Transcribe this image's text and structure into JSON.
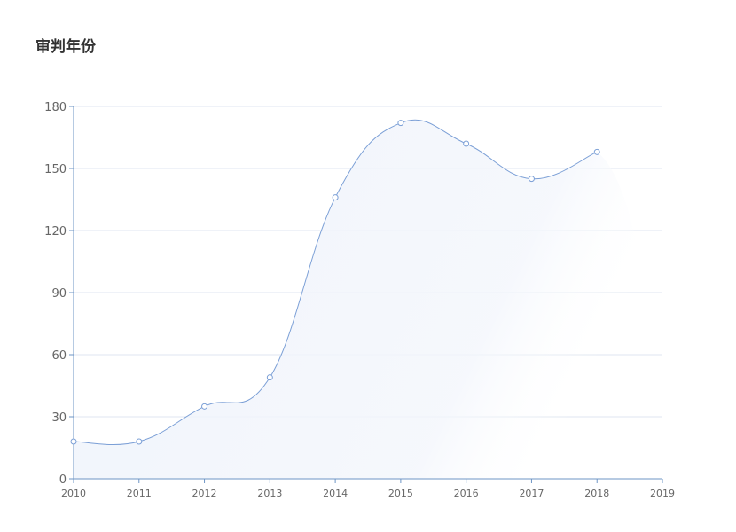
{
  "chart_data": {
    "type": "line",
    "title": "审判年份",
    "x": [
      2010,
      2011,
      2012,
      2013,
      2014,
      2015,
      2016,
      2017,
      2018
    ],
    "values": [
      18,
      18,
      35,
      49,
      136,
      172,
      162,
      145,
      158
    ],
    "xticks": [
      "2010",
      "2011",
      "2012",
      "2013",
      "2014",
      "2015",
      "2016",
      "2017",
      "2018",
      "2019"
    ],
    "yticks": [
      "0",
      "30",
      "60",
      "90",
      "120",
      "150",
      "180"
    ],
    "xlim": [
      2010,
      2019
    ],
    "ylim": [
      0,
      180
    ],
    "smooth": true,
    "area": true,
    "grid": true,
    "line_color": "#7b9fd6",
    "axis_color": "#6e95c5",
    "grid_color": "#dfe6f0"
  }
}
